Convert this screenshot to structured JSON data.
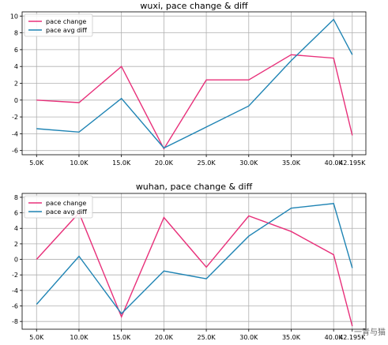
{
  "colors": {
    "pace_change": "#e8307a",
    "pace_avg_diff": "#1f84b4"
  },
  "watermark": "一青与猫",
  "chart_data": [
    {
      "type": "line",
      "title": "wuxi, pace change & diff",
      "categories": [
        "5.0K",
        "10.0K",
        "15.0K",
        "20.0K",
        "25.0K",
        "30.0K",
        "35.0K",
        "40.0K",
        "42.195K"
      ],
      "x": [
        5,
        10,
        15,
        20,
        25,
        30,
        35,
        40,
        42.195
      ],
      "ylim": [
        -6.5,
        10.5
      ],
      "yticks": [
        -6,
        -4,
        -2,
        0,
        2,
        4,
        6,
        8,
        10
      ],
      "grid": true,
      "legend": "top-left",
      "series": [
        {
          "name": "pace change",
          "values": [
            0.0,
            -0.3,
            4.0,
            -5.8,
            2.4,
            2.4,
            5.4,
            5.0,
            -4.2
          ]
        },
        {
          "name": "pace avg diff",
          "values": [
            -3.4,
            -3.8,
            0.2,
            -5.7,
            -3.2,
            -0.7,
            4.7,
            9.6,
            5.4
          ]
        }
      ]
    },
    {
      "type": "line",
      "title": "wuhan, pace change & diff",
      "categories": [
        "5.0K",
        "10.0K",
        "15.0K",
        "20.0K",
        "25.0K",
        "30.0K",
        "35.0K",
        "40.0K",
        "42.195K"
      ],
      "x": [
        5,
        10,
        15,
        20,
        25,
        30,
        35,
        40,
        42.195
      ],
      "ylim": [
        -9,
        8.5
      ],
      "yticks": [
        -8,
        -6,
        -4,
        -2,
        0,
        2,
        4,
        6,
        8
      ],
      "grid": true,
      "legend": "top-left",
      "series": [
        {
          "name": "pace change",
          "values": [
            0.0,
            6.0,
            -7.4,
            5.4,
            -1.0,
            5.6,
            3.6,
            0.6,
            -8.6
          ]
        },
        {
          "name": "pace avg diff",
          "values": [
            -5.8,
            0.4,
            -7.0,
            -1.5,
            -2.5,
            3.0,
            6.6,
            7.2,
            -1.1
          ]
        }
      ]
    }
  ]
}
